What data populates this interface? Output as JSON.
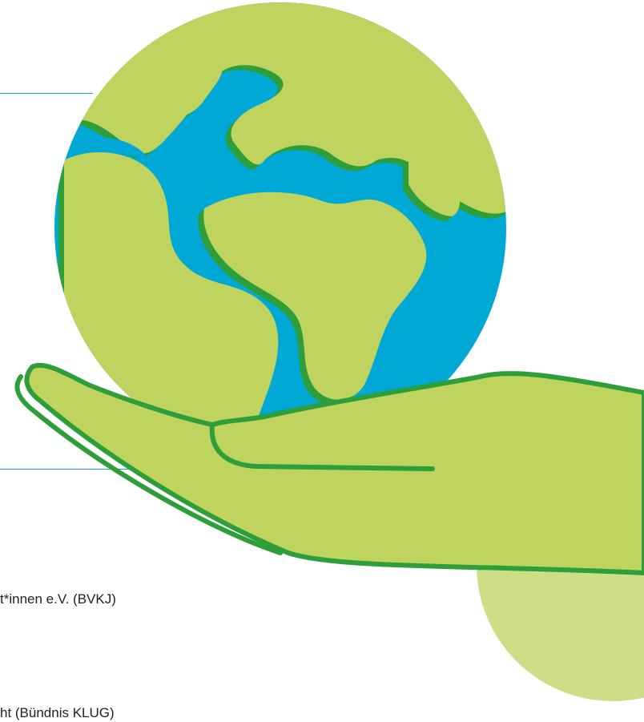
{
  "captions": {
    "line1": "t*innen e.V. (BVKJ)",
    "line2": "ht (Bündnis KLUG)"
  },
  "colors": {
    "ocean": "#00A8D6",
    "land": "#BFD35F",
    "land_shadow": "#2E9E3A",
    "hand": "#BFD35F",
    "hand_outline": "#2E9E3A",
    "pale_circle": "#CDDE87",
    "rule": "#1A9FD6"
  },
  "icons": [
    "globe-icon",
    "hand-icon"
  ]
}
